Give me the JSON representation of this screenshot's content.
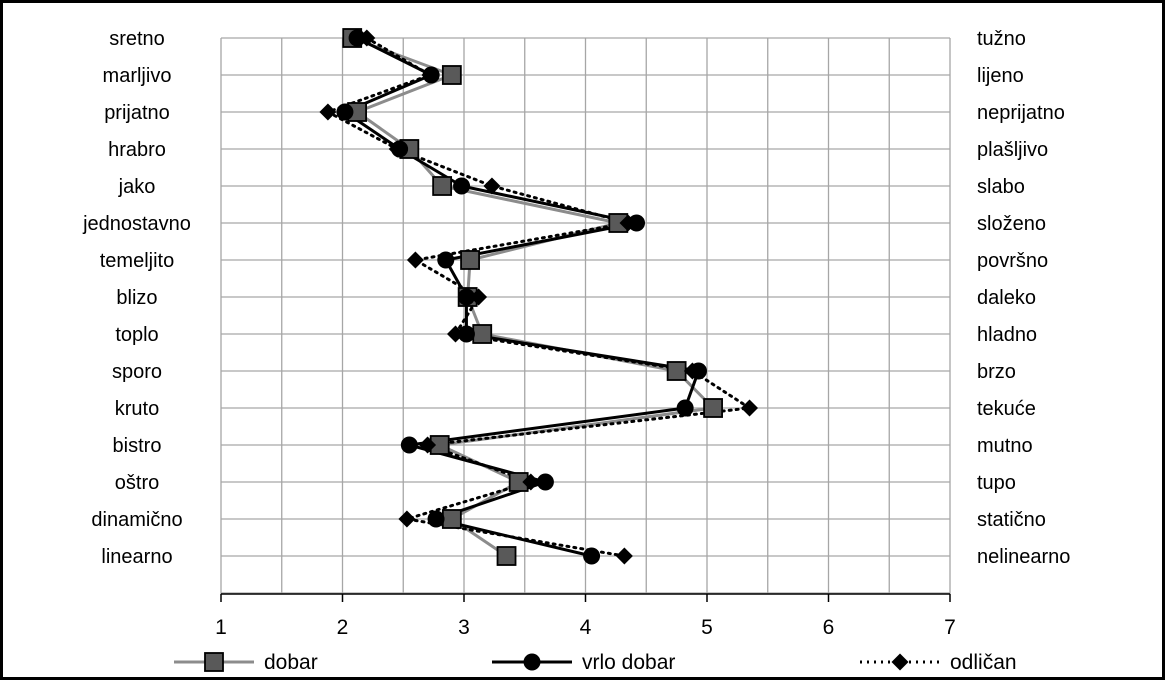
{
  "chart_data": {
    "type": "line",
    "title": "",
    "xlabel": "",
    "ylabel": "",
    "xlim": [
      1,
      7
    ],
    "x_ticks": [
      "1",
      "2",
      "3",
      "4",
      "5",
      "6",
      "7"
    ],
    "grid": true,
    "orientation": "horizontal",
    "legend_position": "bottom",
    "categories_left": [
      "sretno",
      "marljivo",
      "prijatno",
      "hrabro",
      "jako",
      "jednostavno",
      "temeljito",
      "blizo",
      "toplo",
      "sporo",
      "kruto",
      "bistro",
      "oštro",
      "dinamično",
      "linearno"
    ],
    "categories_right": [
      "tužno",
      "lijeno",
      "neprijatno",
      "plašljivo",
      "slabo",
      "složeno",
      "površno",
      "daleko",
      "hladno",
      "brzo",
      "tekuće",
      "mutno",
      "tupo",
      "statično",
      "nelinearno"
    ],
    "series": [
      {
        "name": "dobar",
        "color": "#8c8c8c",
        "marker": "square",
        "values": [
          2.08,
          2.9,
          2.12,
          2.55,
          2.82,
          4.27,
          3.05,
          3.03,
          3.15,
          4.75,
          5.05,
          2.8,
          3.45,
          2.9,
          3.35
        ]
      },
      {
        "name": "vrlo dobar",
        "color": "#000000",
        "marker": "circle",
        "values": [
          2.12,
          2.73,
          2.02,
          2.47,
          2.98,
          4.42,
          2.85,
          3.02,
          3.02,
          4.93,
          4.82,
          2.55,
          3.67,
          2.77,
          4.05
        ]
      },
      {
        "name": "odličan",
        "color": "#000000",
        "marker": "diamond",
        "values": [
          2.2,
          2.72,
          1.88,
          2.45,
          3.23,
          4.35,
          2.6,
          3.12,
          2.93,
          4.88,
          5.35,
          2.7,
          3.55,
          2.53,
          4.32
        ]
      }
    ]
  }
}
